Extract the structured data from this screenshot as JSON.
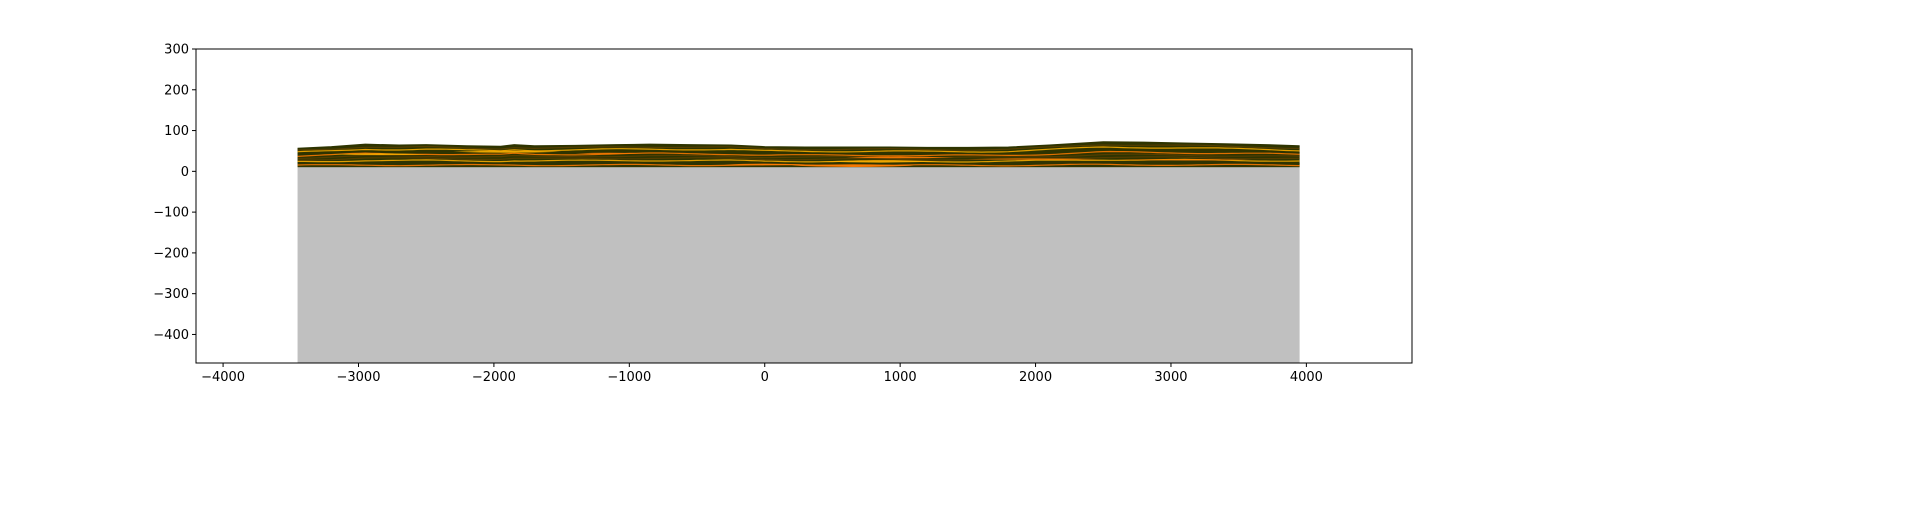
{
  "chart_data": {
    "type": "area",
    "title": "",
    "xlabel": "",
    "ylabel": "",
    "xlim": [
      -4200,
      4780
    ],
    "ylim": [
      -470,
      300
    ],
    "xticks": [
      -4000,
      -3000,
      -2000,
      -1000,
      0,
      1000,
      2000,
      3000,
      4000
    ],
    "xtick_labels": [
      "−4000",
      "−3000",
      "−2000",
      "−1000",
      "0",
      "1000",
      "2000",
      "3000",
      "4000"
    ],
    "yticks": [
      300,
      200,
      100,
      0,
      -100,
      -200,
      -300,
      -400
    ],
    "ytick_labels": [
      "300",
      "200",
      "100",
      "0",
      "−100",
      "−200",
      "−300",
      "−400"
    ],
    "grid": false,
    "legend": "none",
    "section": {
      "x_start": -3450,
      "x_end": 3950,
      "top_surface": {
        "x": [
          -3450,
          -3200,
          -2950,
          -2700,
          -2500,
          -2200,
          -1950,
          -1850,
          -1700,
          -1400,
          -1100,
          -850,
          -550,
          -250,
          0,
          300,
          600,
          900,
          1200,
          1500,
          1800,
          2100,
          2300,
          2500,
          2800,
          3100,
          3400,
          3700,
          3950
        ],
        "y": [
          56,
          60,
          66,
          64,
          65,
          62,
          61,
          65,
          62,
          63,
          65,
          66,
          65,
          64,
          60,
          59,
          59,
          59,
          58,
          58,
          59,
          64,
          68,
          72,
          71,
          69,
          67,
          65,
          62
        ]
      },
      "layer_base": 10,
      "bottom": -470
    },
    "colors": {
      "basement": "#c0c0c0",
      "layer_dark": "#2e3400",
      "layer_mid": "#5a4000",
      "layer_orange": "#ff7a00",
      "layer_bright": "#ffb000",
      "frame": "#000000"
    }
  }
}
